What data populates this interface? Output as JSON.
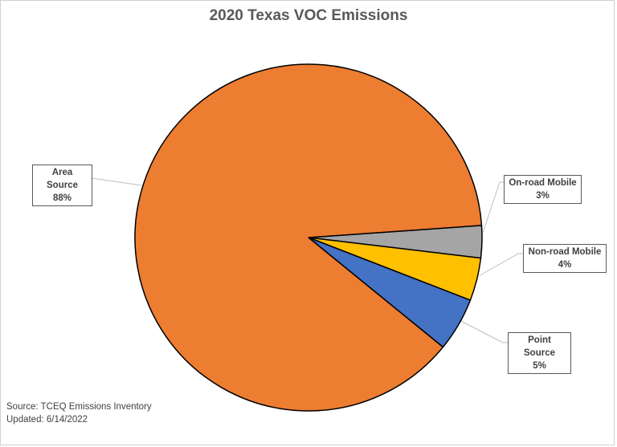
{
  "chart_data": {
    "type": "pie",
    "title": "2020 Texas VOC Emissions",
    "slices": [
      {
        "label": "On-road Mobile",
        "value": 3,
        "value_label": "3%",
        "color": "#A5A5A5"
      },
      {
        "label": "Non-road Mobile",
        "value": 4,
        "value_label": "4%",
        "color": "#FFC000"
      },
      {
        "label": "Point Source",
        "value": 5,
        "value_label": "5%",
        "color": "#4472C4"
      },
      {
        "label": "Area Source",
        "value": 88,
        "value_label": "88%",
        "color": "#ED7D31"
      }
    ],
    "legend": "none",
    "data_labels": "callouts"
  },
  "footnote": {
    "source": "Source: TCEQ Emissions Inventory",
    "updated": "Updated: 6/14/2022"
  }
}
